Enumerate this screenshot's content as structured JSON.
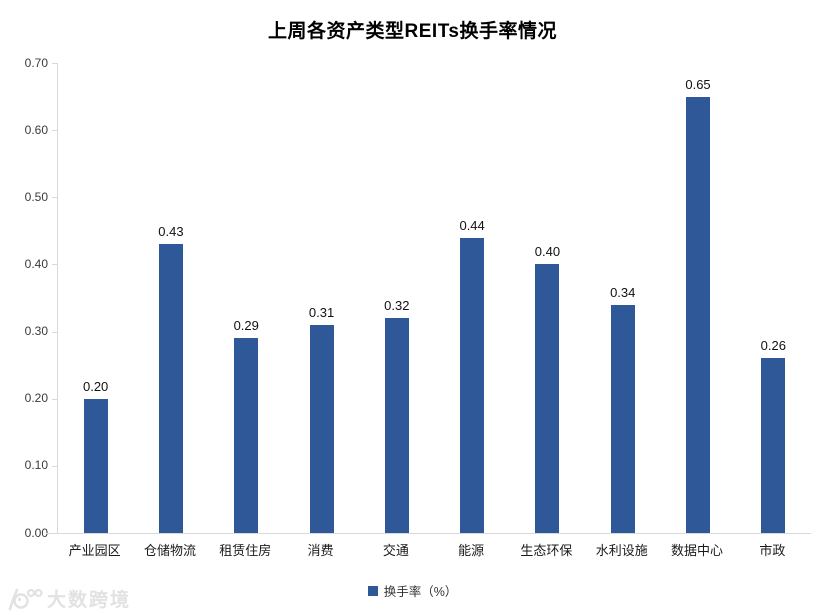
{
  "title": "上周各资产类型REITs换手率情况",
  "legend": {
    "label": "换手率（%）",
    "marker_color": "#2F5899"
  },
  "watermark": {
    "text": "大数跨境",
    "icon": "smiley-100-logo"
  },
  "axes": {
    "y_ticks": [
      "0.70",
      "0.60",
      "0.50",
      "0.40",
      "0.30",
      "0.20",
      "0.10",
      "0.00"
    ]
  },
  "chart_data": {
    "type": "bar",
    "title": "上周各资产类型REITs换手率情况",
    "categories": [
      "产业园区",
      "仓储物流",
      "租赁住房",
      "消费",
      "交通",
      "能源",
      "生态环保",
      "水利设施",
      "数据中心",
      "市政"
    ],
    "series": [
      {
        "name": "换手率（%）",
        "values": [
          0.2,
          0.43,
          0.29,
          0.31,
          0.32,
          0.44,
          0.4,
          0.34,
          0.65,
          0.26
        ]
      }
    ],
    "value_labels": [
      "0.20",
      "0.43",
      "0.29",
      "0.31",
      "0.32",
      "0.44",
      "0.40",
      "0.34",
      "0.65",
      "0.26"
    ],
    "xlabel": "",
    "ylabel": "",
    "ylim": [
      0,
      0.7
    ],
    "ytick_step": 0.1,
    "grid": false,
    "legend_position": "bottom",
    "bar_color": "#2F5899",
    "axis_color": "#d9d9d9"
  }
}
